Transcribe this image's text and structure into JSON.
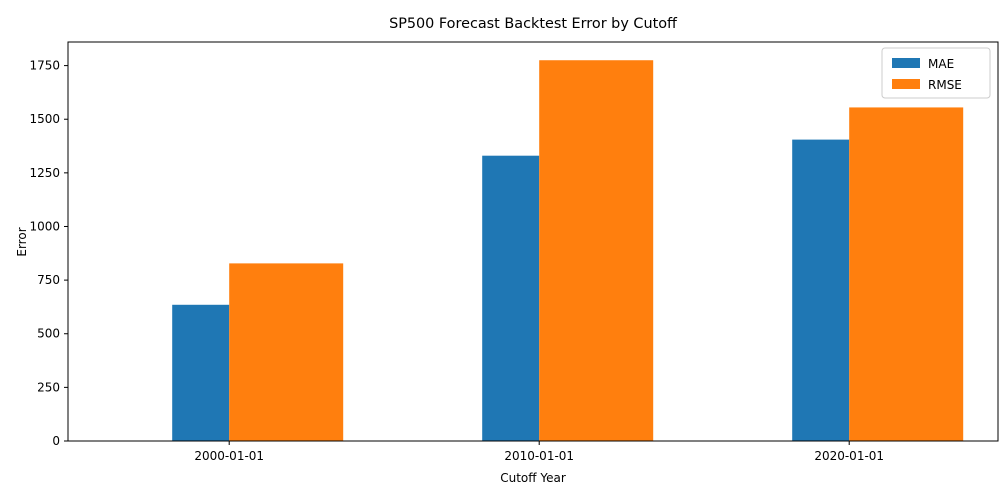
{
  "chart_data": {
    "type": "bar",
    "title": "SP500 Forecast Backtest Error by Cutoff",
    "xlabel": "Cutoff Year",
    "ylabel": "Error",
    "categories": [
      "2000-01-01",
      "2010-01-01",
      "2020-01-01"
    ],
    "series": [
      {
        "name": "MAE",
        "values": [
          635,
          1330,
          1405
        ],
        "color": "#1f77b4"
      },
      {
        "name": "RMSE",
        "values": [
          828,
          1775,
          1555
        ],
        "color": "#ff7f0e"
      }
    ],
    "ylim": [
      0,
      1860
    ],
    "yticks": [
      0,
      250,
      500,
      750,
      1000,
      1250,
      1500,
      1750
    ],
    "grid": false,
    "legend_position": "top-right"
  }
}
